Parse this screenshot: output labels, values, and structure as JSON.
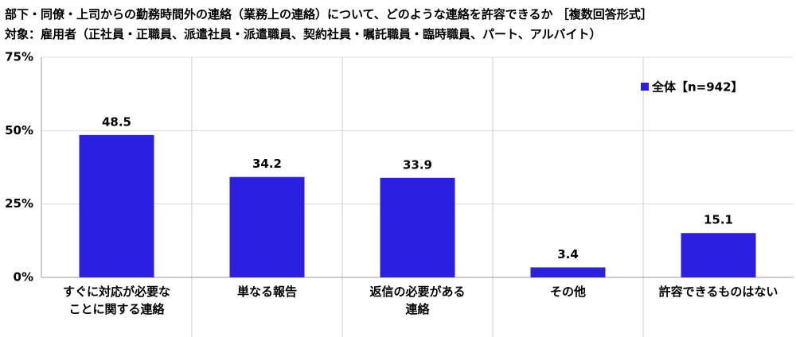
{
  "chart_data": {
    "type": "bar",
    "title": "部下・同僚・上司からの勤務時間外の連絡（業務上の連絡）について、どのような連絡を許容できるか ［複数回答形式］",
    "subtitle": "対象：雇用者（正社員・正職員、派遣社員・派遣職員、契約社員・嘱託職員・臨時職員、パート、アルバイト）",
    "categories": [
      "すぐに対応が必要な\nことに関する連絡",
      "単なる報告",
      "返信の必要がある\n連絡",
      "その他",
      "許容できるものはない"
    ],
    "series": [
      {
        "name": "全体【n=942】",
        "color": "#2b1fe0",
        "values": [
          48.5,
          34.2,
          33.9,
          3.4,
          15.1
        ]
      }
    ],
    "ylim": [
      0,
      75
    ],
    "yticks": [
      {
        "value": 0,
        "label": "0%"
      },
      {
        "value": 25,
        "label": "25%"
      },
      {
        "value": 50,
        "label": "50%"
      },
      {
        "value": 75,
        "label": "75%"
      }
    ],
    "grid": true,
    "legend": "upper right"
  }
}
